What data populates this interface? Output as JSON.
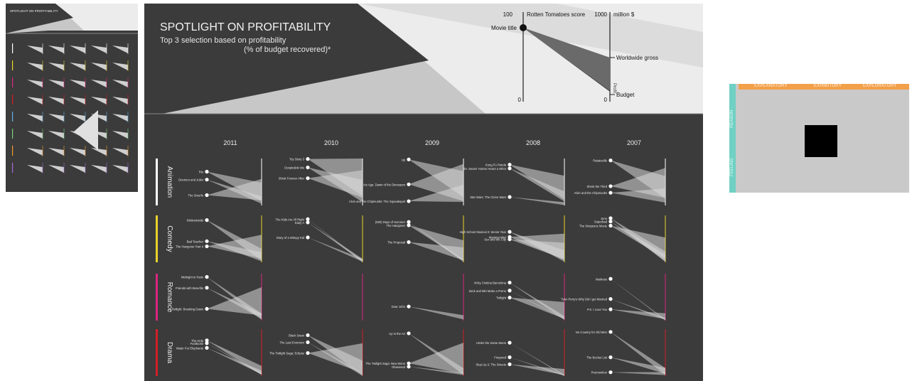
{
  "poster": {
    "title": "SPOTLIGHT ON PROFITABILITY",
    "subtitle_line1": "Top 3 selection based on profitability",
    "subtitle_line2": "(% of budget recovered)*"
  },
  "legend": {
    "score_label": "Rotten Tomatoes score",
    "money_label": "million $",
    "score_max": "100",
    "score_min": "0",
    "money_max": "1000",
    "money_min": "0",
    "movie_title_label": "Movie title",
    "worldwide_label": "Worldwide gross",
    "profit_label": "Profit",
    "budget_label": "Budget"
  },
  "chart_data": {
    "type": "slope",
    "years": [
      "2011",
      "2010",
      "2009",
      "2008",
      "2007"
    ],
    "genres": [
      {
        "name": "Animation",
        "color": "#ffffff"
      },
      {
        "name": "Comedy",
        "color": "#e8d22a"
      },
      {
        "name": "Romance",
        "color": "#d9267e"
      },
      {
        "name": "Drama",
        "color": "#d21f27"
      }
    ],
    "cells": [
      {
        "genre": "Animation",
        "year": "2011",
        "movies": [
          {
            "title": "Rio",
            "score": 72,
            "gross": 484,
            "budget": 90
          },
          {
            "title": "Gnomeo and Juliet",
            "score": 55,
            "gross": 194,
            "budget": 36
          },
          {
            "title": "The Smurfs",
            "score": 22,
            "gross": 564,
            "budget": 110
          }
        ]
      },
      {
        "genre": "Animation",
        "year": "2010",
        "movies": [
          {
            "title": "Toy Story 3",
            "score": 99,
            "gross": 1063,
            "budget": 200
          },
          {
            "title": "Despicable Me",
            "score": 81,
            "gross": 543,
            "budget": 69
          },
          {
            "title": "Shrek Forever After",
            "score": 58,
            "gross": 753,
            "budget": 165
          }
        ]
      },
      {
        "genre": "Animation",
        "year": "2009",
        "movies": [
          {
            "title": "Up",
            "score": 98,
            "gross": 731,
            "budget": 175
          },
          {
            "title": "Ice Age: Dawn of the Dinosaurs",
            "score": 45,
            "gross": 887,
            "budget": 90
          },
          {
            "title": "Alvin and the Chipmunks: The Squeakquel",
            "score": 9,
            "gross": 443,
            "budget": 75
          }
        ]
      },
      {
        "genre": "Animation",
        "year": "2008",
        "movies": [
          {
            "title": "Kung Fu Panda",
            "score": 87,
            "gross": 632,
            "budget": 130
          },
          {
            "title": "Dr. Seuss' Horton Hears a Who!",
            "score": 79,
            "gross": 297,
            "budget": 85
          },
          {
            "title": "Star Wars: The Clone Wars",
            "score": 18,
            "gross": 69,
            "budget": 8
          }
        ]
      },
      {
        "genre": "Animation",
        "year": "2007",
        "movies": [
          {
            "title": "Ratatouille",
            "score": 96,
            "gross": 624,
            "budget": 150
          },
          {
            "title": "Shrek the Third",
            "score": 41,
            "gross": 799,
            "budget": 160
          },
          {
            "title": "Alvin and the Chipmunks",
            "score": 27,
            "gross": 361,
            "budget": 60
          }
        ]
      },
      {
        "genre": "Comedy",
        "year": "2011",
        "movies": [
          {
            "title": "Bridesmaids",
            "score": 90,
            "gross": 288,
            "budget": 33
          },
          {
            "title": "Bad Teacher",
            "score": 45,
            "gross": 216,
            "budget": 20
          },
          {
            "title": "The Hangover Part II",
            "score": 34,
            "gross": 587,
            "budget": 80
          }
        ]
      },
      {
        "genre": "Comedy",
        "year": "2010",
        "movies": [
          {
            "title": "The Kids Are All Right",
            "score": 92,
            "gross": 34,
            "budget": 4
          },
          {
            "title": "Easy A",
            "score": 85,
            "gross": 75,
            "budget": 8
          },
          {
            "title": "Diary of a Wimpy Kid",
            "score": 53,
            "gross": 75,
            "budget": 15
          }
        ]
      },
      {
        "genre": "Comedy",
        "year": "2009",
        "movies": [
          {
            "title": "(500) Days of Summer",
            "score": 86,
            "gross": 61,
            "budget": 8
          },
          {
            "title": "The Hangover",
            "score": 79,
            "gross": 467,
            "budget": 35
          },
          {
            "title": "The Proposal",
            "score": 43,
            "gross": 317,
            "budget": 40
          }
        ]
      },
      {
        "genre": "Comedy",
        "year": "2008",
        "movies": [
          {
            "title": "High School Musical 3: Senior Year",
            "score": 65,
            "gross": 253,
            "budget": 11
          },
          {
            "title": "Mamma Mia!",
            "score": 54,
            "gross": 610,
            "budget": 52
          },
          {
            "title": "Sex and the City",
            "score": 49,
            "gross": 415,
            "budget": 65
          }
        ]
      },
      {
        "genre": "Comedy",
        "year": "2007",
        "movies": [
          {
            "title": "Juno",
            "score": 94,
            "gross": 231,
            "budget": 7
          },
          {
            "title": "Superbad",
            "score": 87,
            "gross": 170,
            "budget": 20
          },
          {
            "title": "The Simpsons Movie",
            "score": 78,
            "gross": 527,
            "budget": 75
          }
        ]
      },
      {
        "genre": "Romance",
        "year": "2011",
        "movies": [
          {
            "title": "Midnight in Paris",
            "score": 93,
            "gross": 151,
            "budget": 17
          },
          {
            "title": "Friends with Benefits",
            "score": 70,
            "gross": 149,
            "budget": 35
          },
          {
            "title": "Twilight: Breaking Dawn",
            "score": 25,
            "gross": 712,
            "budget": 110
          }
        ]
      },
      {
        "genre": "Romance",
        "year": "2010",
        "movies": []
      },
      {
        "genre": "Romance",
        "year": "2009",
        "movies": [
          {
            "title": "Dear John",
            "score": 30,
            "gross": 114,
            "budget": 25
          }
        ]
      },
      {
        "genre": "Romance",
        "year": "2008",
        "movies": [
          {
            "title": "Vicky Cristina Barcelona",
            "score": 81,
            "gross": 96,
            "budget": 15
          },
          {
            "title": "Zack and Miri Make a Porno",
            "score": 64,
            "gross": 42,
            "budget": 24
          },
          {
            "title": "Twilight",
            "score": 49,
            "gross": 393,
            "budget": 37
          }
        ]
      },
      {
        "genre": "Romance",
        "year": "2007",
        "movies": [
          {
            "title": "Waitress",
            "score": 89,
            "gross": 22,
            "budget": 2
          },
          {
            "title": "Tyler Perry's Why Did I get Married",
            "score": 46,
            "gross": 55,
            "budget": 15
          },
          {
            "title": "P.S. I Love You",
            "score": 24,
            "gross": 156,
            "budget": 30
          }
        ]
      },
      {
        "genre": "Drama",
        "year": "2011",
        "movies": [
          {
            "title": "The Help",
            "score": 76,
            "gross": 216,
            "budget": 25
          },
          {
            "title": "Footloose",
            "score": 70,
            "gross": 63,
            "budget": 24
          },
          {
            "title": "Water For Elephants",
            "score": 60,
            "gross": 117,
            "budget": 38
          }
        ]
      },
      {
        "genre": "Drama",
        "year": "2010",
        "movies": [
          {
            "title": "Black Swan",
            "score": 87,
            "gross": 329,
            "budget": 13
          },
          {
            "title": "The Last Exorcism",
            "score": 72,
            "gross": 68,
            "budget": 2
          },
          {
            "title": "The Twilight Saga: Eclipse",
            "score": 49,
            "gross": 698,
            "budget": 68
          }
        ]
      },
      {
        "genre": "Drama",
        "year": "2009",
        "movies": [
          {
            "title": "Up in the Air",
            "score": 91,
            "gross": 166,
            "budget": 25
          },
          {
            "title": "The Twilight Saga: New Moon",
            "score": 27,
            "gross": 710,
            "budget": 50
          },
          {
            "title": "Obsessed",
            "score": 20,
            "gross": 74,
            "budget": 20
          }
        ]
      },
      {
        "genre": "Drama",
        "year": "2008",
        "movies": [
          {
            "title": "Under the Same Moon",
            "score": 71,
            "gross": 23,
            "budget": 2
          },
          {
            "title": "Fireproof",
            "score": 40,
            "gross": 33,
            "budget": 1
          },
          {
            "title": "Step Up 2: The Streets",
            "score": 25,
            "gross": 150,
            "budget": 17
          }
        ]
      },
      {
        "genre": "Drama",
        "year": "2007",
        "movies": [
          {
            "title": "No Country for Old Men",
            "score": 94,
            "gross": 171,
            "budget": 25
          },
          {
            "title": "The Bucket List",
            "score": 40,
            "gross": 175,
            "budget": 45
          },
          {
            "title": "Premonition",
            "score": 8,
            "gross": 84,
            "budget": 20
          }
        ]
      }
    ]
  },
  "framework": {
    "col1": "EXPLANATORY",
    "col2": "EXHIBITORY",
    "col3": "EXPLORATORY",
    "row1": "REASON",
    "row2": "FEELING"
  }
}
